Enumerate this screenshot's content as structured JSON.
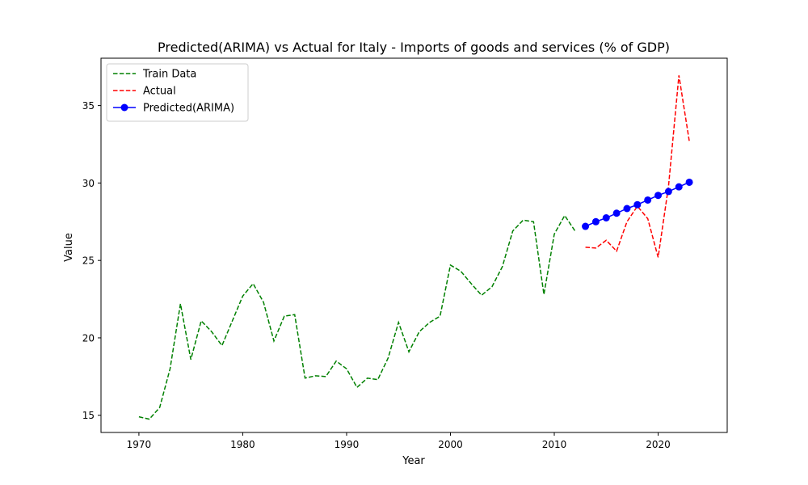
{
  "chart_data": {
    "type": "line",
    "title": "Predicted(ARIMA) vs Actual for Italy - Imports of goods and services (% of GDP)",
    "xlabel": "Year",
    "ylabel": "Value",
    "xlim": [
      1966.35,
      2026.65
    ],
    "ylim": [
      13.89,
      38.06
    ],
    "xticks": [
      1970,
      1980,
      1990,
      2000,
      2010,
      2020
    ],
    "yticks": [
      15,
      20,
      25,
      30,
      35
    ],
    "grid": false,
    "legend_position": "top-left",
    "series": [
      {
        "name": "Train Data",
        "color": "#008000",
        "style": "dashed",
        "marker": "none",
        "x": [
          1970,
          1971,
          1972,
          1973,
          1974,
          1975,
          1976,
          1977,
          1978,
          1979,
          1980,
          1981,
          1982,
          1983,
          1984,
          1985,
          1986,
          1987,
          1988,
          1989,
          1990,
          1991,
          1992,
          1993,
          1994,
          1995,
          1996,
          1997,
          1998,
          1999,
          2000,
          2001,
          2002,
          2003,
          2004,
          2005,
          2006,
          2007,
          2008,
          2009,
          2010,
          2011,
          2012
        ],
        "values": [
          14.9,
          14.75,
          15.5,
          18.0,
          22.2,
          18.6,
          21.1,
          20.4,
          19.5,
          21.1,
          22.7,
          23.5,
          22.3,
          19.8,
          21.4,
          21.5,
          17.4,
          17.55,
          17.5,
          18.5,
          18.0,
          16.8,
          17.4,
          17.3,
          18.7,
          21.0,
          19.1,
          20.4,
          21.0,
          21.4,
          24.7,
          24.3,
          23.5,
          22.75,
          23.3,
          24.6,
          26.9,
          27.6,
          27.5,
          22.8,
          26.7,
          27.9,
          26.9
        ]
      },
      {
        "name": "Actual",
        "color": "#ff0000",
        "style": "dashed",
        "marker": "none",
        "x": [
          2013,
          2014,
          2015,
          2016,
          2017,
          2018,
          2019,
          2020,
          2021,
          2022,
          2023
        ],
        "values": [
          25.85,
          25.8,
          26.3,
          25.6,
          27.5,
          28.5,
          27.7,
          25.2,
          29.8,
          36.95,
          32.7
        ]
      },
      {
        "name": "Predicted(ARIMA)",
        "color": "#0000ff",
        "style": "solid",
        "marker": "circle",
        "x": [
          2013,
          2014,
          2015,
          2016,
          2017,
          2018,
          2019,
          2020,
          2021,
          2022,
          2023
        ],
        "values": [
          27.2,
          27.5,
          27.75,
          28.05,
          28.35,
          28.6,
          28.9,
          29.2,
          29.45,
          29.75,
          30.05
        ]
      }
    ]
  }
}
